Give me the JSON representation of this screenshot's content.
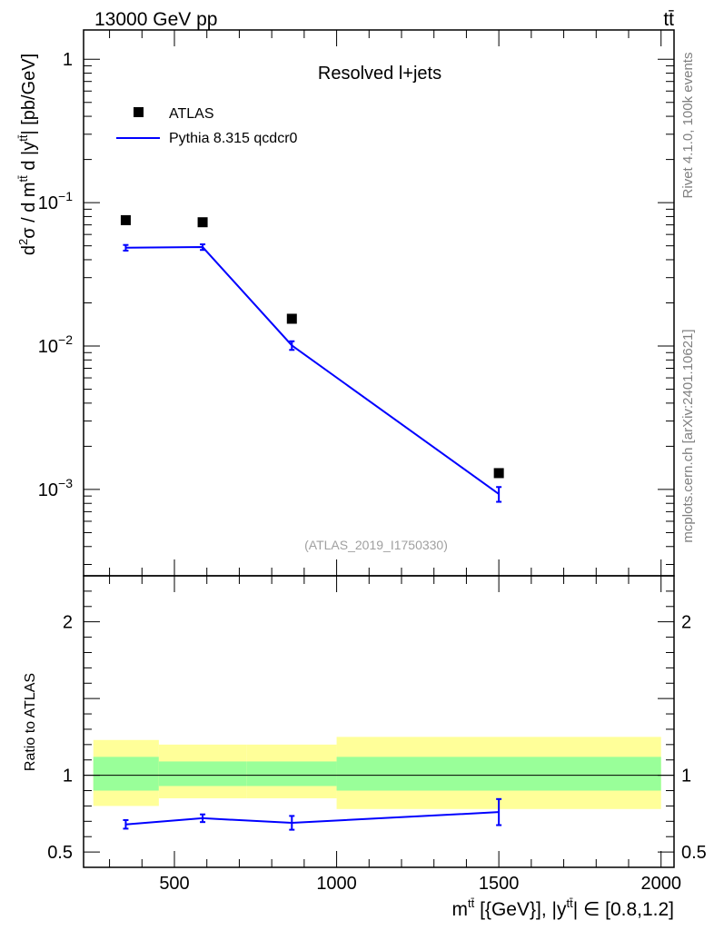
{
  "header": {
    "energy_label": "13000 GeV pp",
    "process_label": "tt̄"
  },
  "side_labels": {
    "rivet": "Rivet 4.1.0,  100k events",
    "source": "mcplots.cern.ch [arXiv:2401.10621]"
  },
  "colors": {
    "mc_line": "#0000ff",
    "data_marker": "#000000",
    "band_inner": "#99ff99",
    "band_outer": "#ffff99",
    "watermark": "#808080"
  },
  "chart_data": [
    {
      "type": "line",
      "panel": "main",
      "title": "Resolved l+jets",
      "watermark": "(ATLAS_2019_I1750330)",
      "ylabel_parts": [
        "d",
        "2",
        "σ / d m",
        "tt̄",
        " d |y",
        "tt̄",
        "| [pb/GeV]"
      ],
      "yscale": "log",
      "ylim": [
        0.00025,
        1.6
      ],
      "xlim": [
        220,
        2040
      ],
      "yticks": [
        {
          "value": 1,
          "base": "1",
          "exp": ""
        },
        {
          "value": 0.1,
          "base": "10",
          "exp": "−1"
        },
        {
          "value": 0.01,
          "base": "10",
          "exp": "−2"
        },
        {
          "value": 0.001,
          "base": "10",
          "exp": "−3"
        }
      ],
      "legend": {
        "placement": "top-left",
        "entries": [
          {
            "label": "ATLAS",
            "kind": "marker"
          },
          {
            "label": "Pythia 8.315 qcdcr0",
            "kind": "line"
          }
        ]
      },
      "series": [
        {
          "name": "ATLAS",
          "kind": "marker",
          "x": [
            350,
            587,
            862,
            1500
          ],
          "y": [
            0.0755,
            0.073,
            0.0155,
            0.0013
          ]
        },
        {
          "name": "Pythia 8.315 qcdcr0",
          "kind": "line",
          "x": [
            350,
            587,
            862,
            1500
          ],
          "y": [
            0.0485,
            0.049,
            0.0101,
            0.00093
          ],
          "yerr": [
            0.0022,
            0.0022,
            0.0007,
            0.00011
          ]
        }
      ]
    },
    {
      "type": "line",
      "panel": "ratio",
      "ylabel": "Ratio to ATLAS",
      "xlabel_parts": [
        "m",
        "tt̄",
        " [{GeV}], |y",
        "tt̄",
        "| ∈ [0.8,1.2]"
      ],
      "ylim": [
        0.4,
        2.3
      ],
      "xlim": [
        220,
        2040
      ],
      "xticks": [
        500,
        1000,
        1500,
        2000
      ],
      "yticks": [
        0.5,
        1,
        2
      ],
      "reference_line": 1,
      "bands": [
        {
          "x": [
            250,
            452
          ],
          "inner": [
            0.9,
            1.12
          ],
          "outer": [
            0.8,
            1.23
          ]
        },
        {
          "x": [
            452,
            722
          ],
          "inner": [
            0.93,
            1.09
          ],
          "outer": [
            0.85,
            1.2
          ]
        },
        {
          "x": [
            722,
            1000
          ],
          "inner": [
            0.93,
            1.09
          ],
          "outer": [
            0.85,
            1.2
          ]
        },
        {
          "x": [
            1000,
            2000
          ],
          "inner": [
            0.9,
            1.12
          ],
          "outer": [
            0.78,
            1.25
          ]
        }
      ],
      "series": [
        {
          "name": "Pythia 8.315 qcdcr0",
          "x": [
            350,
            587,
            862,
            1500
          ],
          "y": [
            0.68,
            0.72,
            0.69,
            0.76
          ],
          "yerr": [
            0.028,
            0.025,
            0.045,
            0.085
          ]
        }
      ]
    }
  ]
}
